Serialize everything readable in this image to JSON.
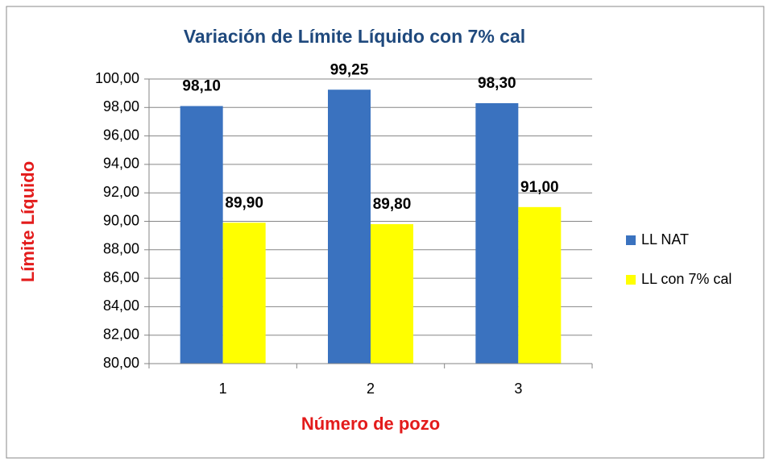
{
  "chart_data": {
    "type": "bar",
    "title": "Variación de Límite Líquido con 7% cal",
    "x_label": "Número de pozo",
    "y_label": "Límite Líquido",
    "categories": [
      "1",
      "2",
      "3"
    ],
    "series": [
      {
        "name": "LL NAT",
        "color": "#3a72bf",
        "values": [
          98.1,
          99.25,
          98.3
        ],
        "value_labels": [
          "98,10",
          "99,25",
          "98,30"
        ]
      },
      {
        "name": "LL con 7% cal",
        "color": "#ffff00",
        "values": [
          89.9,
          89.8,
          91.0
        ],
        "value_labels": [
          "89,90",
          "89,80",
          "91,00"
        ]
      }
    ],
    "ylim": [
      80,
      100
    ],
    "yticks": [
      {
        "value": 80,
        "label": "80,00"
      },
      {
        "value": 82,
        "label": "82,00"
      },
      {
        "value": 84,
        "label": "84,00"
      },
      {
        "value": 86,
        "label": "86,00"
      },
      {
        "value": 88,
        "label": "88,00"
      },
      {
        "value": 90,
        "label": "90,00"
      },
      {
        "value": 92,
        "label": "92,00"
      },
      {
        "value": 94,
        "label": "94,00"
      },
      {
        "value": 96,
        "label": "96,00"
      },
      {
        "value": 98,
        "label": "98,00"
      },
      {
        "value": 100,
        "label": "100,00"
      }
    ],
    "grid": true,
    "legend": "right"
  }
}
